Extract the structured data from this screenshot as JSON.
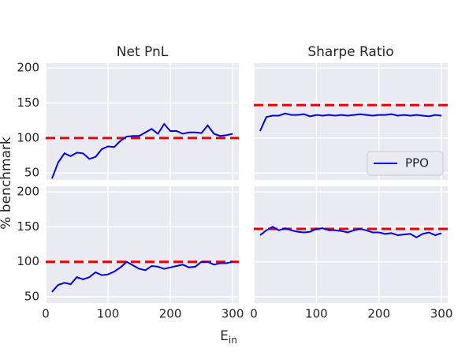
{
  "chart_data": [
    {
      "type": "line",
      "title": "Net PnL",
      "ylabel": "% benchmark",
      "x": [
        10,
        20,
        30,
        40,
        50,
        60,
        70,
        80,
        90,
        100,
        110,
        120,
        130,
        140,
        150,
        160,
        170,
        180,
        190,
        200,
        210,
        220,
        230,
        240,
        250,
        260,
        270,
        280,
        290,
        300
      ],
      "series": [
        {
          "name": "PPO",
          "color": "#0000ee",
          "values": [
            42,
            65,
            78,
            74,
            79,
            78,
            70,
            73,
            84,
            88,
            87,
            96,
            102,
            103,
            103,
            108,
            113,
            106,
            120,
            110,
            110,
            106,
            108,
            108,
            107,
            118,
            106,
            103,
            104,
            106
          ]
        }
      ],
      "hline": 100,
      "hline_color": "#ee0000",
      "xlim": [
        0,
        310
      ],
      "xticks": [
        0,
        100,
        200,
        300
      ],
      "ylim": [
        40,
        207
      ],
      "yticks": [
        50,
        100,
        150,
        200
      ],
      "grid": true,
      "show_xtick_labels": false,
      "show_ytick_labels": true
    },
    {
      "type": "line",
      "title": "Sharpe Ratio",
      "x": [
        10,
        20,
        30,
        40,
        50,
        60,
        70,
        80,
        90,
        100,
        110,
        120,
        130,
        140,
        150,
        160,
        170,
        180,
        190,
        200,
        210,
        220,
        230,
        240,
        250,
        260,
        270,
        280,
        290,
        300
      ],
      "series": [
        {
          "name": "PPO",
          "color": "#0000ee",
          "values": [
            110,
            130,
            132,
            132,
            135,
            133,
            133,
            134,
            131,
            133,
            132,
            133,
            132,
            133,
            132,
            133,
            134,
            133,
            132,
            133,
            133,
            134,
            132,
            133,
            132,
            133,
            132,
            131,
            133,
            132
          ]
        }
      ],
      "hline": 147,
      "hline_color": "#ee0000",
      "xlim": [
        0,
        310
      ],
      "xticks": [
        0,
        100,
        200,
        300
      ],
      "ylim": [
        40,
        207
      ],
      "yticks": [
        50,
        100,
        150,
        200
      ],
      "grid": true,
      "show_xtick_labels": false,
      "show_ytick_labels": false,
      "legend": "lower right"
    },
    {
      "type": "line",
      "xlabel": "E",
      "xlabel_sub": "in",
      "x": [
        10,
        20,
        30,
        40,
        50,
        60,
        70,
        80,
        90,
        100,
        110,
        120,
        130,
        140,
        150,
        160,
        170,
        180,
        190,
        200,
        210,
        220,
        230,
        240,
        250,
        260,
        270,
        280,
        290,
        300
      ],
      "series": [
        {
          "name": "PPO",
          "color": "#0000ee",
          "values": [
            57,
            67,
            70,
            68,
            78,
            75,
            78,
            85,
            81,
            82,
            86,
            92,
            100,
            95,
            90,
            88,
            94,
            93,
            90,
            92,
            94,
            96,
            92,
            93,
            100,
            100,
            96,
            98,
            98,
            100
          ]
        }
      ],
      "hline": 100,
      "hline_color": "#ee0000",
      "xlim": [
        0,
        310
      ],
      "xticks": [
        0,
        100,
        200,
        300
      ],
      "ylim": [
        41,
        208
      ],
      "yticks": [
        50,
        100,
        150,
        200
      ],
      "grid": true,
      "show_xtick_labels": true,
      "show_ytick_labels": true
    },
    {
      "type": "line",
      "x": [
        10,
        20,
        30,
        40,
        50,
        60,
        70,
        80,
        90,
        100,
        110,
        120,
        130,
        140,
        150,
        160,
        170,
        180,
        190,
        200,
        210,
        220,
        230,
        240,
        250,
        260,
        270,
        280,
        290,
        300
      ],
      "series": [
        {
          "name": "PPO",
          "color": "#0000ee",
          "values": [
            138,
            145,
            150,
            145,
            148,
            145,
            143,
            142,
            143,
            147,
            148,
            145,
            145,
            144,
            142,
            145,
            147,
            145,
            142,
            142,
            140,
            141,
            138,
            139,
            140,
            135,
            140,
            142,
            138,
            141
          ]
        }
      ],
      "hline": 147,
      "hline_color": "#ee0000",
      "xlim": [
        0,
        310
      ],
      "xticks": [
        0,
        100,
        200,
        300
      ],
      "ylim": [
        41,
        208
      ],
      "yticks": [
        50,
        100,
        150,
        200
      ],
      "grid": true,
      "show_xtick_labels": true,
      "show_ytick_labels": false
    }
  ]
}
